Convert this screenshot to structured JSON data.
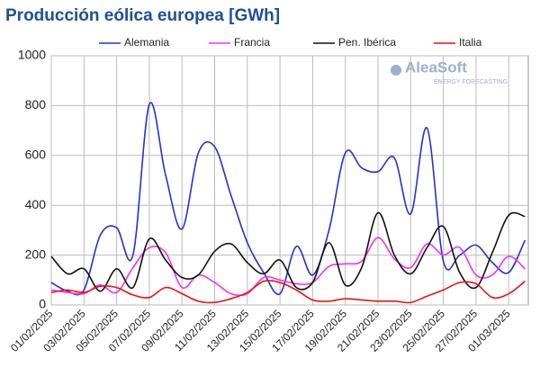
{
  "chart_data": {
    "type": "line",
    "title": "Producción eólica europea [GWh]",
    "logo": {
      "name": "AleaSoft",
      "tagline": "ENERGY FORECASTING"
    },
    "categories": [
      "01/02/2025",
      null,
      "03/02/2025",
      null,
      "05/02/2025",
      null,
      "07/02/2025",
      null,
      "09/02/2025",
      null,
      "11/02/2025",
      null,
      "13/02/2025",
      null,
      "15/02/2025",
      null,
      "17/02/2025",
      null,
      "19/02/2025",
      null,
      "21/02/2025",
      null,
      "23/02/2025",
      null,
      "25/02/2025",
      null,
      "27/02/2025",
      null,
      "01/03/2025",
      null
    ],
    "series": [
      {
        "name": "Alemania",
        "color": "#2233cc",
        "values": [
          90,
          55,
          60,
          280,
          310,
          200,
          805,
          520,
          305,
          610,
          635,
          440,
          250,
          130,
          45,
          235,
          120,
          300,
          610,
          550,
          535,
          590,
          365,
          710,
          175,
          200,
          240,
          170,
          130,
          260
        ]
      },
      {
        "name": "Francia",
        "color": "#ee33ee",
        "values": [
          60,
          50,
          45,
          80,
          50,
          150,
          230,
          210,
          70,
          120,
          90,
          45,
          45,
          110,
          100,
          85,
          90,
          155,
          165,
          175,
          270,
          185,
          150,
          245,
          200,
          230,
          120,
          120,
          195,
          145
        ]
      },
      {
        "name": "Pen. Ibérica",
        "color": "#111111",
        "values": [
          195,
          125,
          145,
          55,
          145,
          70,
          265,
          180,
          110,
          120,
          215,
          245,
          170,
          125,
          180,
          70,
          90,
          250,
          80,
          150,
          370,
          200,
          125,
          230,
          315,
          130,
          70,
          210,
          360,
          355
        ]
      },
      {
        "name": "Italia",
        "color": "#ee1111",
        "values": [
          50,
          60,
          50,
          75,
          70,
          40,
          30,
          70,
          45,
          15,
          10,
          25,
          50,
          95,
          90,
          60,
          20,
          15,
          25,
          20,
          15,
          15,
          10,
          35,
          60,
          90,
          85,
          30,
          45,
          95
        ]
      }
    ],
    "ylim": [
      0,
      1000
    ],
    "yticks": [
      0,
      200,
      400,
      600,
      800,
      1000
    ],
    "grid": true,
    "legend": "top"
  }
}
